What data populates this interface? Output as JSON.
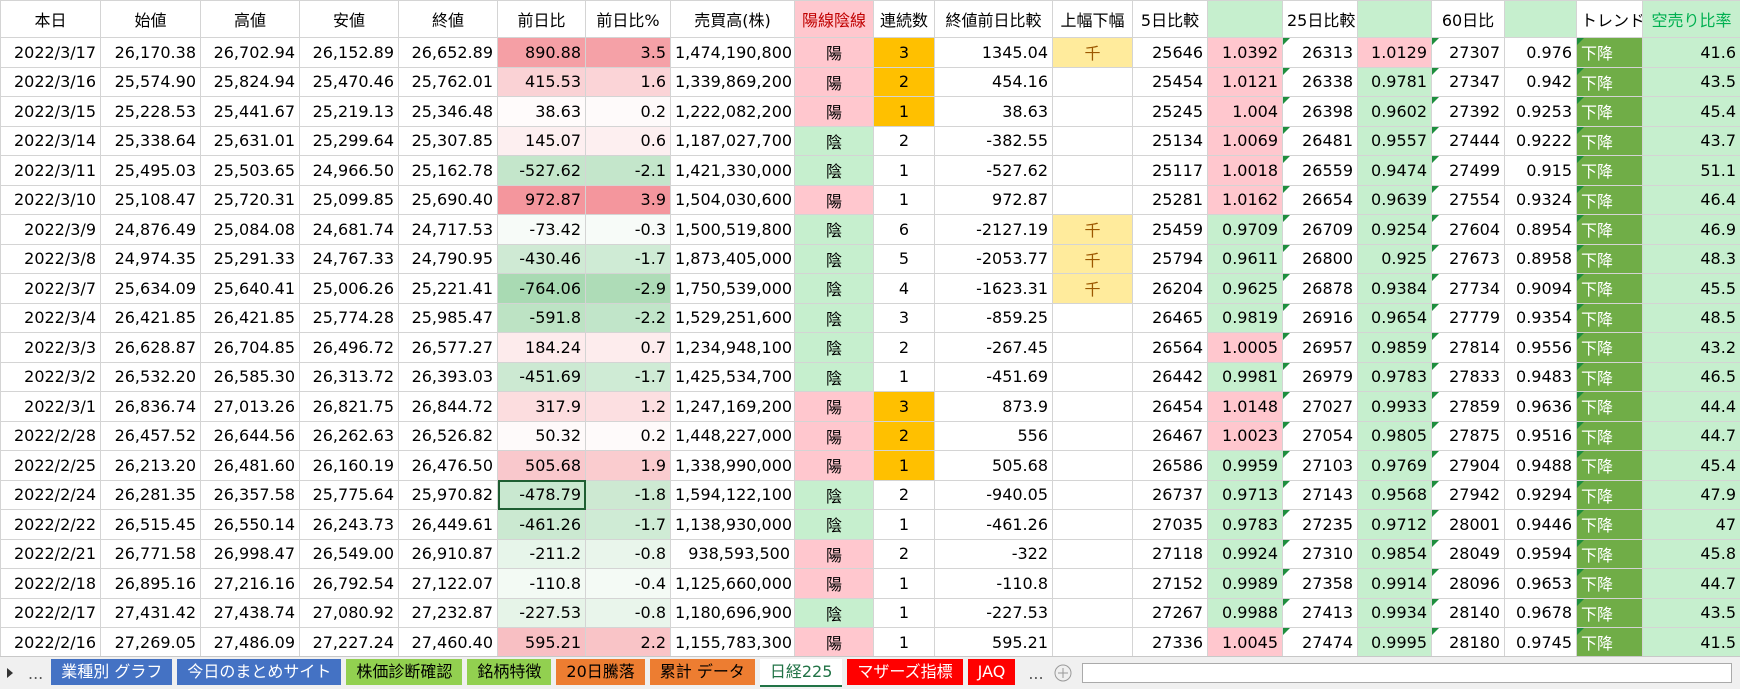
{
  "sheet": {
    "headers": [
      "本日",
      "始値",
      "高値",
      "安値",
      "終値",
      "前日比",
      "前日比%",
      "売買高(株)",
      "陽線陰線",
      "連続数",
      "終値前日比較",
      "上幅下幅",
      "5日比較",
      null,
      "25日比較",
      null,
      "60日比",
      null,
      "トレンド",
      "空売り比率"
    ],
    "rows": [
      [
        "2022/3/17",
        "26,170.38",
        "26,702.94",
        "26,152.89",
        "26,652.89",
        "890.88",
        "3.5",
        "1,474,190,800",
        "陽",
        "3",
        "1345.04",
        "千",
        "25646",
        "1.0392",
        "26313",
        "1.0129",
        "27307",
        "0.976",
        "下降",
        "41.6"
      ],
      [
        "2022/3/16",
        "25,574.90",
        "25,824.94",
        "25,470.46",
        "25,762.01",
        "415.53",
        "1.6",
        "1,339,869,200",
        "陽",
        "2",
        "454.16",
        null,
        "25454",
        "1.0121",
        "26338",
        "0.9781",
        "27347",
        "0.942",
        "下降",
        "43.5"
      ],
      [
        "2022/3/15",
        "25,228.53",
        "25,441.67",
        "25,219.13",
        "25,346.48",
        "38.63",
        "0.2",
        "1,222,082,200",
        "陽",
        "1",
        "38.63",
        null,
        "25245",
        "1.004",
        "26398",
        "0.9602",
        "27392",
        "0.9253",
        "下降",
        "45.4"
      ],
      [
        "2022/3/14",
        "25,338.64",
        "25,631.01",
        "25,299.64",
        "25,307.85",
        "145.07",
        "0.6",
        "1,187,027,700",
        "陰",
        "2",
        "-382.55",
        null,
        "25134",
        "1.0069",
        "26481",
        "0.9557",
        "27444",
        "0.9222",
        "下降",
        "43.7"
      ],
      [
        "2022/3/11",
        "25,495.03",
        "25,503.65",
        "24,966.50",
        "25,162.78",
        "-527.62",
        "-2.1",
        "1,421,330,000",
        "陰",
        "1",
        "-527.62",
        null,
        "25117",
        "1.0018",
        "26559",
        "0.9474",
        "27499",
        "0.915",
        "下降",
        "51.1"
      ],
      [
        "2022/3/10",
        "25,108.47",
        "25,720.31",
        "25,099.85",
        "25,690.40",
        "972.87",
        "3.9",
        "1,504,030,600",
        "陽",
        "1",
        "972.87",
        null,
        "25281",
        "1.0162",
        "26654",
        "0.9639",
        "27554",
        "0.9324",
        "下降",
        "46.4"
      ],
      [
        "2022/3/9",
        "24,876.49",
        "25,084.08",
        "24,681.74",
        "24,717.53",
        "-73.42",
        "-0.3",
        "1,500,519,800",
        "陰",
        "6",
        "-2127.19",
        "千",
        "25459",
        "0.9709",
        "26709",
        "0.9254",
        "27604",
        "0.8954",
        "下降",
        "46.9"
      ],
      [
        "2022/3/8",
        "24,974.35",
        "25,291.33",
        "24,767.33",
        "24,790.95",
        "-430.46",
        "-1.7",
        "1,873,405,000",
        "陰",
        "5",
        "-2053.77",
        "千",
        "25794",
        "0.9611",
        "26800",
        "0.925",
        "27673",
        "0.8958",
        "下降",
        "48.3"
      ],
      [
        "2022/3/7",
        "25,634.09",
        "25,640.41",
        "25,006.26",
        "25,221.41",
        "-764.06",
        "-2.9",
        "1,750,539,000",
        "陰",
        "4",
        "-1623.31",
        "千",
        "26204",
        "0.9625",
        "26878",
        "0.9384",
        "27734",
        "0.9094",
        "下降",
        "45.5"
      ],
      [
        "2022/3/4",
        "26,421.85",
        "26,421.85",
        "25,774.28",
        "25,985.47",
        "-591.8",
        "-2.2",
        "1,529,251,600",
        "陰",
        "3",
        "-859.25",
        null,
        "26465",
        "0.9819",
        "26916",
        "0.9654",
        "27779",
        "0.9354",
        "下降",
        "48.5"
      ],
      [
        "2022/3/3",
        "26,628.87",
        "26,704.85",
        "26,496.72",
        "26,577.27",
        "184.24",
        "0.7",
        "1,234,948,100",
        "陰",
        "2",
        "-267.45",
        null,
        "26564",
        "1.0005",
        "26957",
        "0.9859",
        "27814",
        "0.9556",
        "下降",
        "43.2"
      ],
      [
        "2022/3/2",
        "26,532.20",
        "26,585.30",
        "26,313.72",
        "26,393.03",
        "-451.69",
        "-1.7",
        "1,425,534,700",
        "陰",
        "1",
        "-451.69",
        null,
        "26442",
        "0.9981",
        "26979",
        "0.9783",
        "27833",
        "0.9483",
        "下降",
        "46.5"
      ],
      [
        "2022/3/1",
        "26,836.74",
        "27,013.26",
        "26,821.75",
        "26,844.72",
        "317.9",
        "1.2",
        "1,247,169,200",
        "陽",
        "3",
        "873.9",
        null,
        "26454",
        "1.0148",
        "27027",
        "0.9933",
        "27859",
        "0.9636",
        "下降",
        "44.4"
      ],
      [
        "2022/2/28",
        "26,457.52",
        "26,644.56",
        "26,262.63",
        "26,526.82",
        "50.32",
        "0.2",
        "1,448,227,000",
        "陽",
        "2",
        "556",
        null,
        "26467",
        "1.0023",
        "27054",
        "0.9805",
        "27875",
        "0.9516",
        "下降",
        "44.7"
      ],
      [
        "2022/2/25",
        "26,213.20",
        "26,481.60",
        "26,160.19",
        "26,476.50",
        "505.68",
        "1.9",
        "1,338,990,000",
        "陽",
        "1",
        "505.68",
        null,
        "26586",
        "0.9959",
        "27103",
        "0.9769",
        "27904",
        "0.9488",
        "下降",
        "45.4"
      ],
      [
        "2022/2/24",
        "26,281.35",
        "26,357.58",
        "25,775.64",
        "25,970.82",
        "-478.79",
        "-1.8",
        "1,594,122,100",
        "陰",
        "2",
        "-940.05",
        null,
        "26737",
        "0.9713",
        "27143",
        "0.9568",
        "27942",
        "0.9294",
        "下降",
        "47.9"
      ],
      [
        "2022/2/22",
        "26,515.45",
        "26,550.14",
        "26,243.73",
        "26,449.61",
        "-461.26",
        "-1.7",
        "1,138,930,000",
        "陰",
        "1",
        "-461.26",
        null,
        "27035",
        "0.9783",
        "27235",
        "0.9712",
        "28001",
        "0.9446",
        "下降",
        "47"
      ],
      [
        "2022/2/21",
        "26,771.58",
        "26,998.47",
        "26,549.00",
        "26,910.87",
        "-211.2",
        "-0.8",
        "938,593,500",
        "陽",
        "2",
        "-322",
        null,
        "27118",
        "0.9924",
        "27310",
        "0.9854",
        "28049",
        "0.9594",
        "下降",
        "45.8"
      ],
      [
        "2022/2/18",
        "26,895.16",
        "27,216.16",
        "26,792.54",
        "27,122.07",
        "-110.8",
        "-0.4",
        "1,125,660,000",
        "陽",
        "1",
        "-110.8",
        null,
        "27152",
        "0.9989",
        "27358",
        "0.9914",
        "28096",
        "0.9653",
        "下降",
        "44.7"
      ],
      [
        "2022/2/17",
        "27,431.42",
        "27,438.74",
        "27,080.92",
        "27,232.87",
        "-227.53",
        "-0.8",
        "1,180,696,900",
        "陰",
        "1",
        "-227.53",
        null,
        "27267",
        "0.9988",
        "27413",
        "0.9934",
        "28140",
        "0.9678",
        "下降",
        "43.5"
      ],
      [
        "2022/2/16",
        "27,269.05",
        "27,486.09",
        "27,227.24",
        "27,460.40",
        "595.21",
        "2.2",
        "1,155,783,300",
        "陽",
        "1",
        "595.21",
        null,
        "27336",
        "1.0045",
        "27474",
        "0.9995",
        "28180",
        "0.9745",
        "下降",
        "41.5"
      ]
    ],
    "streak_highlight_rows": [
      0,
      1,
      2,
      12,
      13,
      14
    ],
    "selected_cell": [
      15,
      5
    ]
  },
  "tab_bar": {
    "more_left": "...",
    "more_right": "...",
    "tabs": [
      {
        "label": "業種別 グラフ",
        "color": "#4472c4"
      },
      {
        "label": "今日のまとめサイト",
        "color": "#4472c4"
      },
      {
        "label": "株価診断確認",
        "color": "#92d050"
      },
      {
        "label": "銘柄特徴",
        "color": "#92d050"
      },
      {
        "label": "20日騰落",
        "color": "#ed7d31"
      },
      {
        "label": "累計 データ",
        "color": "#ed7d31"
      },
      {
        "label": "日経225",
        "color": "#ffffff",
        "active": true
      },
      {
        "label": "マザーズ指標",
        "color": "#ff0000"
      },
      {
        "label": "JAQ",
        "color": "#ff0000"
      }
    ]
  }
}
